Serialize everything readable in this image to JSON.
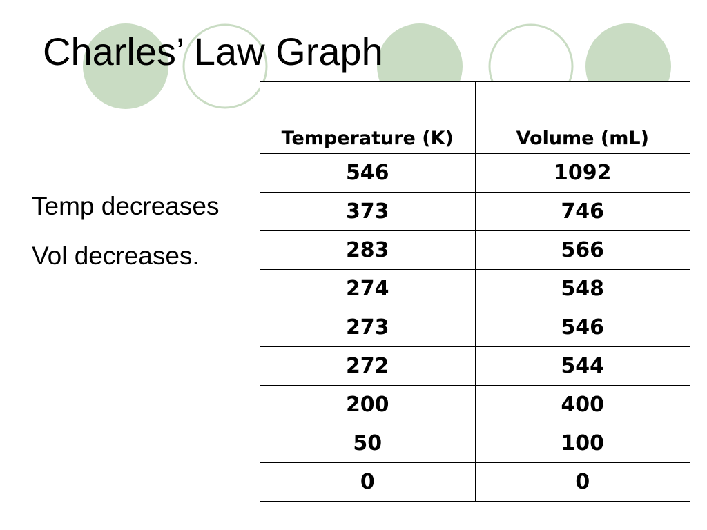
{
  "slide": {
    "title": "Charles’ Law Graph",
    "bullets": [
      "Temp decreases",
      "Vol  decreases."
    ]
  },
  "table": {
    "headers": [
      "Temperature (K)",
      "Volume (mL)"
    ],
    "rows": [
      [
        "546",
        "1092"
      ],
      [
        "373",
        "746"
      ],
      [
        "283",
        "566"
      ],
      [
        "274",
        "548"
      ],
      [
        "273",
        "546"
      ],
      [
        "272",
        "544"
      ],
      [
        "200",
        "400"
      ],
      [
        "50",
        "100"
      ],
      [
        "0",
        "0"
      ]
    ]
  },
  "theme": {
    "circle_fill": "#c9dcc3",
    "circle_outline": "#c9dcc3"
  }
}
